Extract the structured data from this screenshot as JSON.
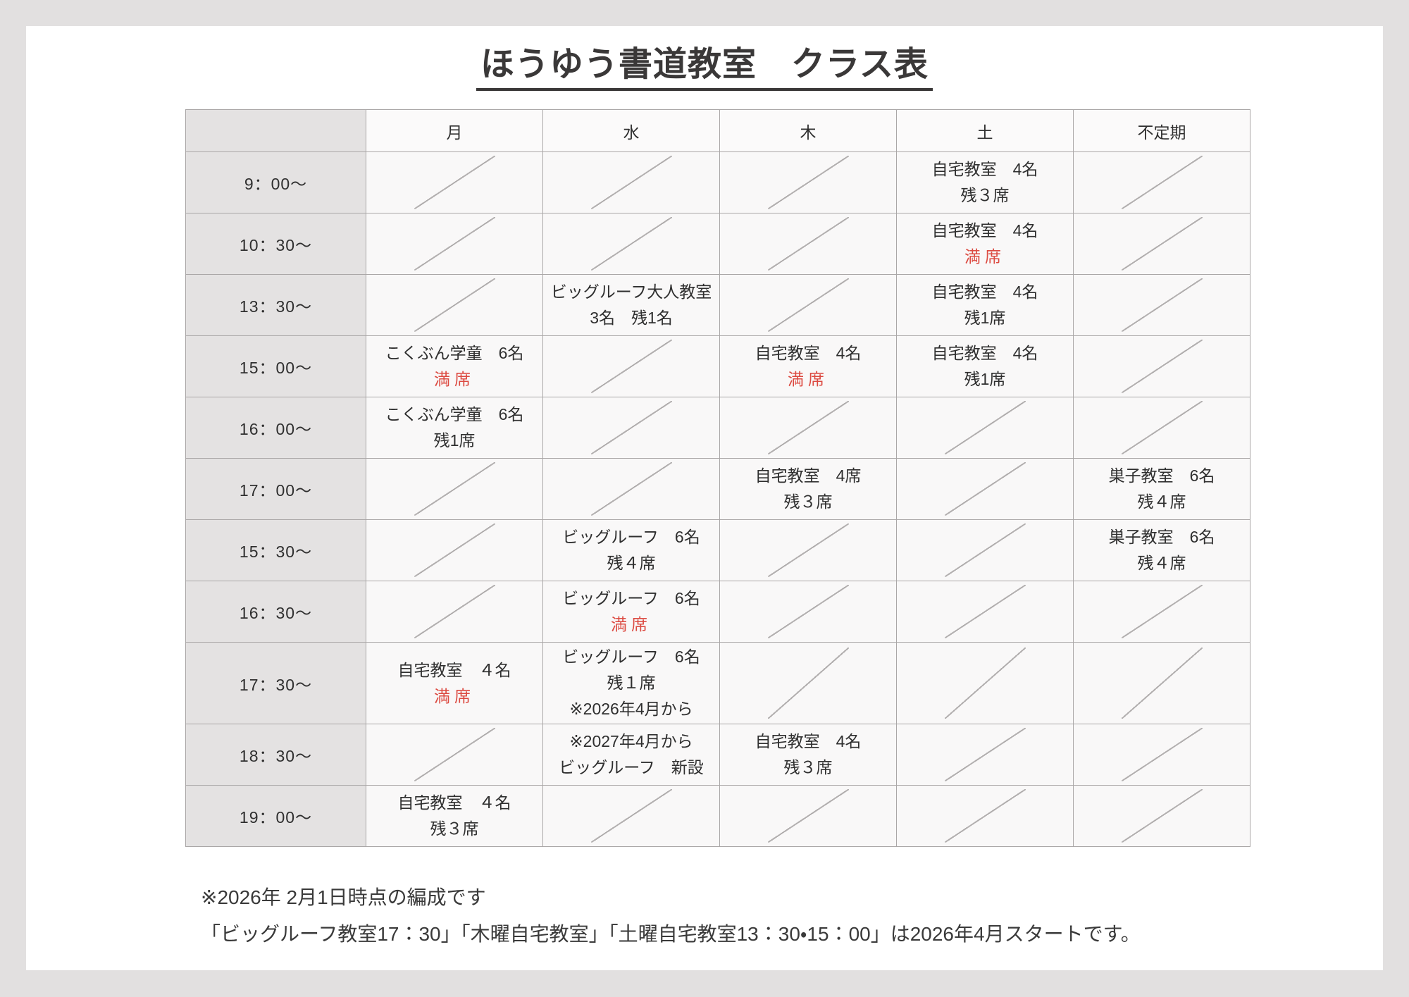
{
  "page": {
    "title": "ほうゆう書道教室　クラス表"
  },
  "colors": {
    "accent_red": "#dc4a41",
    "header_gray": "#e4e2e2",
    "cell_bg": "#f9f8f8",
    "border": "#aaa7a7"
  },
  "table": {
    "corner_label": "",
    "day_headers": [
      "月",
      "水",
      "木",
      "土",
      "不定期"
    ],
    "rows": [
      {
        "time": "9：00～",
        "cells": [
          {
            "empty": true
          },
          {
            "empty": true
          },
          {
            "empty": true
          },
          {
            "lines": [
              {
                "text": "自宅教室　4名"
              },
              {
                "text": "残３席"
              }
            ]
          },
          {
            "empty": true
          }
        ]
      },
      {
        "time": "10：30～",
        "cells": [
          {
            "empty": true
          },
          {
            "empty": true
          },
          {
            "empty": true
          },
          {
            "lines": [
              {
                "text": "自宅教室　4名"
              },
              {
                "text": "満席",
                "full": true
              }
            ]
          },
          {
            "empty": true
          }
        ]
      },
      {
        "time": "13：30～",
        "cells": [
          {
            "empty": true
          },
          {
            "lines": [
              {
                "text": "ビッグルーフ大人教室"
              },
              {
                "text": "3名　残1名"
              }
            ]
          },
          {
            "empty": true
          },
          {
            "lines": [
              {
                "text": "自宅教室　4名"
              },
              {
                "text": "残1席"
              }
            ]
          },
          {
            "empty": true
          }
        ]
      },
      {
        "time": "15：00～",
        "cells": [
          {
            "lines": [
              {
                "text": "こくぶん学童　6名"
              },
              {
                "text": "満席",
                "full": true
              }
            ]
          },
          {
            "empty": true
          },
          {
            "lines": [
              {
                "text": "自宅教室　4名"
              },
              {
                "text": "満席",
                "full": true
              }
            ]
          },
          {
            "lines": [
              {
                "text": "自宅教室　4名"
              },
              {
                "text": "残1席"
              }
            ]
          },
          {
            "empty": true
          }
        ]
      },
      {
        "time": "16：00～",
        "cells": [
          {
            "lines": [
              {
                "text": "こくぶん学童　6名"
              },
              {
                "text": "残1席"
              }
            ]
          },
          {
            "empty": true
          },
          {
            "empty": true
          },
          {
            "empty": true
          },
          {
            "empty": true
          }
        ]
      },
      {
        "time": "17：00～",
        "cells": [
          {
            "empty": true
          },
          {
            "empty": true
          },
          {
            "lines": [
              {
                "text": "自宅教室　4席"
              },
              {
                "text": "残３席"
              }
            ]
          },
          {
            "empty": true
          },
          {
            "lines": [
              {
                "text": "巣子教室　6名"
              },
              {
                "text": "残４席"
              }
            ]
          }
        ]
      },
      {
        "time": "15：30～",
        "cells": [
          {
            "empty": true
          },
          {
            "lines": [
              {
                "text": "ビッグルーフ　6名"
              },
              {
                "text": "残４席"
              }
            ]
          },
          {
            "empty": true
          },
          {
            "empty": true
          },
          {
            "lines": [
              {
                "text": "巣子教室　6名"
              },
              {
                "text": "残４席"
              }
            ]
          }
        ]
      },
      {
        "time": "16：30～",
        "cells": [
          {
            "empty": true
          },
          {
            "lines": [
              {
                "text": "ビッグルーフ　6名"
              },
              {
                "text": "満席",
                "full": true
              }
            ]
          },
          {
            "empty": true
          },
          {
            "empty": true
          },
          {
            "empty": true
          }
        ]
      },
      {
        "time": "17：30～",
        "tall": true,
        "cells": [
          {
            "lines": [
              {
                "text": "自宅教室　４名"
              },
              {
                "text": "満席",
                "full": true
              }
            ]
          },
          {
            "lines": [
              {
                "text": "ビッグルーフ　6名"
              },
              {
                "text": "残１席"
              },
              {
                "text": "※2026年4月から"
              }
            ]
          },
          {
            "empty": true
          },
          {
            "empty": true
          },
          {
            "empty": true
          }
        ]
      },
      {
        "time": "18：30～",
        "cells": [
          {
            "empty": true
          },
          {
            "lines": [
              {
                "text": "※2027年4月から"
              },
              {
                "text": "ビッグルーフ　新設"
              }
            ]
          },
          {
            "lines": [
              {
                "text": "自宅教室　4名"
              },
              {
                "text": "残３席"
              }
            ]
          },
          {
            "empty": true
          },
          {
            "empty": true
          }
        ]
      },
      {
        "time": "19：00～",
        "cells": [
          {
            "lines": [
              {
                "text": "自宅教室　４名"
              },
              {
                "text": "残３席"
              }
            ]
          },
          {
            "empty": true
          },
          {
            "empty": true
          },
          {
            "empty": true
          },
          {
            "empty": true
          }
        ]
      }
    ]
  },
  "notes": [
    "※2026年 2月1日時点の編成です",
    "「ビッグルーフ教室17：30」「木曜自宅教室」「土曜自宅教室13：30・15：00」は2026年4月スタートです。"
  ]
}
